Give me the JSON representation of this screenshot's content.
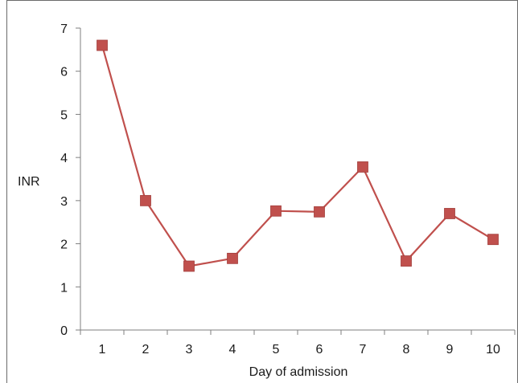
{
  "chart_data": {
    "type": "line",
    "title": "",
    "xlabel": "Day of admission",
    "ylabel": "INR",
    "x": [
      1,
      2,
      3,
      4,
      5,
      6,
      7,
      8,
      9,
      10
    ],
    "xlim": [
      0.5,
      10.5
    ],
    "ylim": [
      0,
      7
    ],
    "yticks": [
      0,
      1,
      2,
      3,
      4,
      5,
      6,
      7
    ],
    "grid": false,
    "legend": "none",
    "series": [
      {
        "values": [
          6.6,
          3.0,
          1.48,
          1.66,
          2.76,
          2.74,
          3.78,
          1.6,
          2.7,
          2.1
        ],
        "color": "#c0504d",
        "marker": "square"
      }
    ]
  }
}
